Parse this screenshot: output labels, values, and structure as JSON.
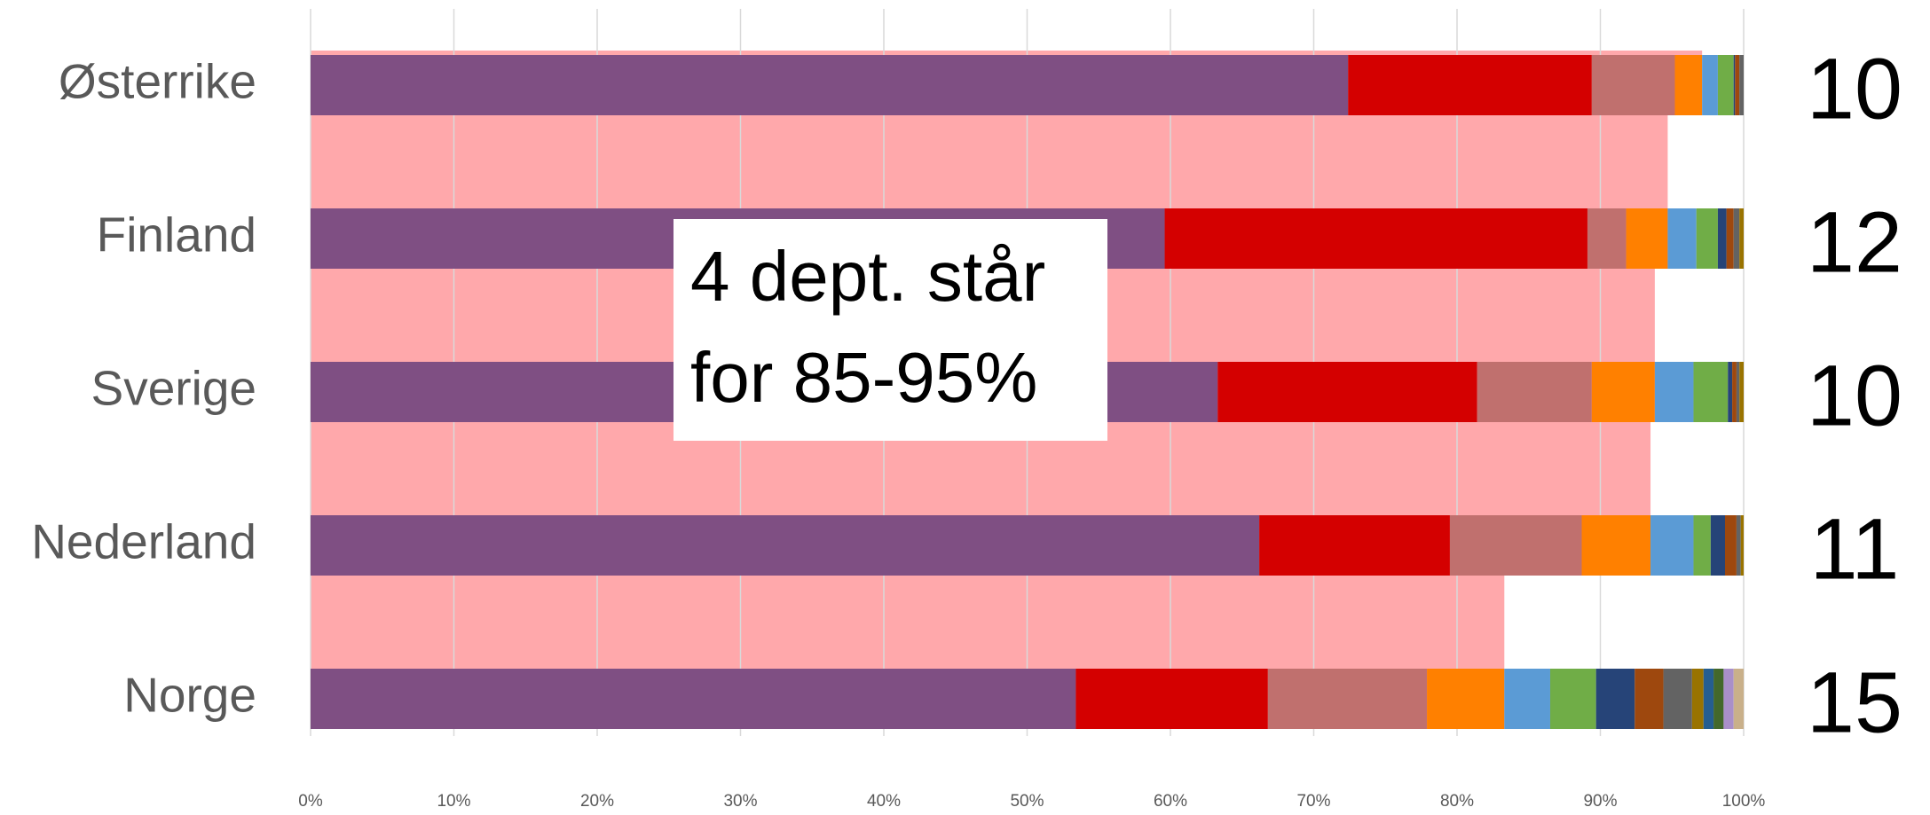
{
  "chart_data": {
    "type": "stacked_barh",
    "categories": [
      "Østerrike",
      "Finland",
      "Sverige",
      "Nederland",
      "Norge"
    ],
    "series": [
      {
        "color": "#7f4f83",
        "values": [
          72.4,
          59.6,
          63.3,
          66.2,
          53.4
        ]
      },
      {
        "color": "#d40000",
        "values": [
          17.0,
          29.5,
          18.1,
          13.3,
          13.4
        ]
      },
      {
        "color": "#c0706e",
        "values": [
          5.8,
          2.7,
          8.0,
          9.2,
          11.1
        ]
      },
      {
        "color": "#ff8000",
        "values": [
          1.9,
          2.9,
          4.4,
          4.8,
          5.4
        ]
      },
      {
        "color": "#5b9bd5",
        "values": [
          1.1,
          2.0,
          2.7,
          3.0,
          3.2
        ]
      },
      {
        "color": "#70ad47",
        "values": [
          1.1,
          1.5,
          2.4,
          1.2,
          3.2
        ]
      },
      {
        "color": "#264478",
        "values": [
          0.1,
          0.6,
          0.3,
          1.0,
          2.7
        ]
      },
      {
        "color": "#9e480e",
        "values": [
          0.3,
          0.5,
          0.3,
          0.8,
          2.0
        ]
      },
      {
        "color": "#636363",
        "values": [
          0.3,
          0.4,
          0.2,
          0.3,
          2.0
        ]
      },
      {
        "color": "#997300",
        "values": [
          0,
          0.3,
          0.3,
          0.2,
          0.8
        ]
      },
      {
        "color": "#255e91",
        "values": [
          0,
          0,
          0,
          0,
          0.7
        ]
      },
      {
        "color": "#43682b",
        "values": [
          0,
          0,
          0,
          0,
          0.7
        ]
      },
      {
        "color": "#a98fc9",
        "values": [
          0,
          0,
          0,
          0,
          0.7
        ]
      },
      {
        "color": "#c9b08a",
        "values": [
          0,
          0,
          0,
          0,
          0.7
        ]
      }
    ],
    "xlim": [
      0,
      100
    ],
    "xticks": [
      {
        "value": 0,
        "label": "0%"
      },
      {
        "value": 10,
        "label": "10%"
      },
      {
        "value": 20,
        "label": "20%"
      },
      {
        "value": 30,
        "label": "30%"
      },
      {
        "value": 40,
        "label": "40%"
      },
      {
        "value": 50,
        "label": "50%"
      },
      {
        "value": 60,
        "label": "60%"
      },
      {
        "value": 70,
        "label": "70%"
      },
      {
        "value": 80,
        "label": "80%"
      },
      {
        "value": 90,
        "label": "90%"
      },
      {
        "value": 100,
        "label": "100%"
      }
    ],
    "grid": true,
    "right_labels": [
      10,
      12,
      10,
      11,
      15
    ],
    "annotation": [
      "4 dept. står",
      "for 85-95%"
    ],
    "highlight_color": "#ffa8ab"
  }
}
